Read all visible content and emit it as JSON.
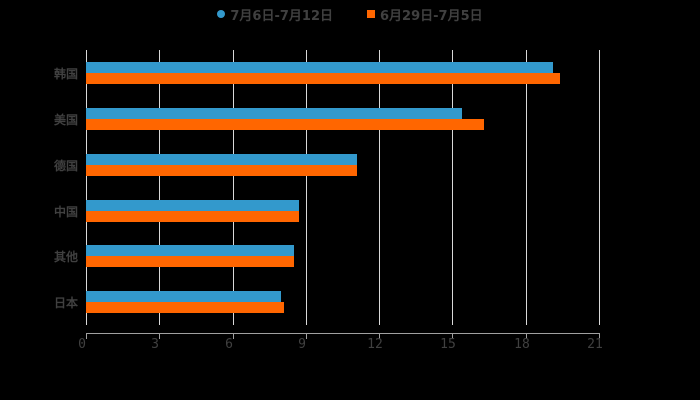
{
  "chart_data": {
    "type": "bar",
    "orientation": "horizontal",
    "title": "",
    "xlabel": "",
    "ylabel": "",
    "categories": [
      "韩国",
      "美国",
      "德国",
      "中国",
      "其他",
      "日本"
    ],
    "series": [
      {
        "name": "7月6日-7月12日",
        "color": "#3399cc",
        "values": [
          19.1,
          15.4,
          11.1,
          8.7,
          8.5,
          8.0
        ]
      },
      {
        "name": "6月29日-7月5日",
        "color": "#ff6600",
        "values": [
          19.4,
          16.3,
          11.1,
          8.7,
          8.5,
          8.1
        ]
      }
    ],
    "xlim": [
      0,
      21
    ],
    "xticks": [
      "0",
      "3",
      "6",
      "9",
      "12",
      "15",
      "18",
      "21"
    ],
    "grid": true,
    "legend_position": "top"
  },
  "legend": {
    "series_1": "7月6日-7月12日",
    "series_2": "6月29日-7月5日"
  },
  "colors": {
    "series_1": "#3399cc",
    "series_2": "#ff6600",
    "background": "#000000"
  }
}
